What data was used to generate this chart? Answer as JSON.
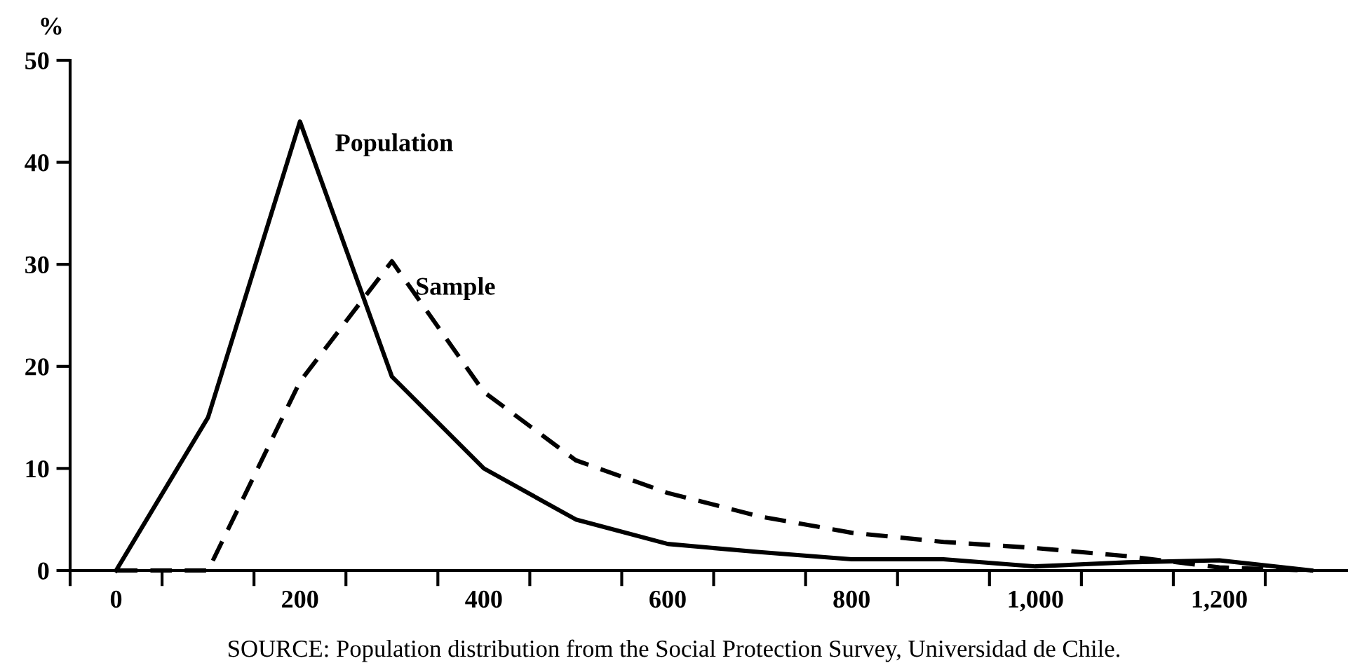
{
  "chart_data": {
    "type": "line",
    "ylabel": "%",
    "annotations": [
      "SOURCE: Population distribution from the Social Protection Survey, Universidad de Chile."
    ],
    "x": [
      0,
      100,
      200,
      300,
      400,
      500,
      600,
      700,
      800,
      900,
      1000,
      1100,
      1200,
      1300
    ],
    "series": [
      {
        "name": "Population",
        "color": "#000000",
        "line_style": "solid",
        "values": [
          0,
          15,
          44,
          19,
          10,
          5,
          2.6,
          1.8,
          1.1,
          1.1,
          0.4,
          0.8,
          1,
          0
        ]
      },
      {
        "name": "Sample",
        "color": "#000000",
        "line_style": "dashed",
        "values": [
          0,
          0,
          18.5,
          30.3,
          17.5,
          10.8,
          7.6,
          5.3,
          3.7,
          2.8,
          2.2,
          1.4,
          0.3,
          0
        ]
      }
    ],
    "xlim": [
      -50,
      1340
    ],
    "ylim": [
      0,
      50
    ],
    "xticks": [
      {
        "value": -50,
        "label": null
      },
      0,
      {
        "value": 50,
        "label": null
      },
      {
        "value": 150,
        "label": null
      },
      200,
      {
        "value": 250,
        "label": null
      },
      {
        "value": 350,
        "label": null
      },
      400,
      {
        "value": 450,
        "label": null
      },
      {
        "value": 550,
        "label": null
      },
      600,
      {
        "value": 650,
        "label": null
      },
      {
        "value": 750,
        "label": null
      },
      800,
      {
        "value": 850,
        "label": null
      },
      {
        "value": 950,
        "label": null
      },
      {
        "value": 1000,
        "label": "1,000"
      },
      {
        "value": 1050,
        "label": null
      },
      {
        "value": 1150,
        "label": null
      },
      {
        "value": 1200,
        "label": "1,200"
      },
      {
        "value": 1250,
        "label": null
      }
    ],
    "yticks": [
      0,
      10,
      20,
      30,
      40,
      50
    ],
    "grid": false,
    "marker": "none"
  }
}
